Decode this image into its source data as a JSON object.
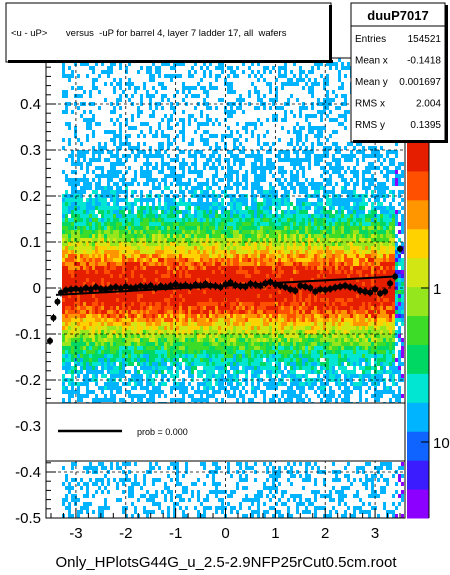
{
  "chart_data": {
    "type": "heatmap",
    "title": "<u - uP>       versus  -uP for barrel 4, layer 7 ladder 17, all  wafers",
    "xlabel": "",
    "ylabel": "",
    "xlim": [
      -3.6,
      3.6
    ],
    "ylim": [
      -0.5,
      0.5
    ],
    "x_ticks": [
      -3,
      -2,
      -1,
      0,
      1,
      2,
      3
    ],
    "y_ticks": [
      -0.5,
      -0.4,
      -0.3,
      -0.2,
      -0.1,
      0,
      0.1,
      0.2,
      0.3,
      0.4
    ],
    "y_tick_labels": [
      "-0.5",
      "-0.4",
      "-0.3",
      "-0.2",
      "-0.1",
      "0",
      "0.1",
      "0.2",
      "0.3",
      "0.4"
    ],
    "color_scale": {
      "type": "log",
      "tick_labels": [
        "1",
        "10"
      ],
      "colors": [
        "#8b00ff",
        "#3a1cff",
        "#0f64ff",
        "#00b4ff",
        "#00e6d2",
        "#00d864",
        "#3cdc28",
        "#96e61e",
        "#d2e614",
        "#ffd200",
        "#ff9600",
        "#ff5000",
        "#e61e00"
      ]
    },
    "profile_series": {
      "name": "mean <u - uP> per -uP bin",
      "x": [
        -3.52,
        -3.45,
        -3.37,
        -3.3,
        -3.2,
        -3.1,
        -3.0,
        -2.9,
        -2.8,
        -2.7,
        -2.6,
        -2.5,
        -2.4,
        -2.3,
        -2.2,
        -2.1,
        -2.0,
        -1.9,
        -1.8,
        -1.7,
        -1.6,
        -1.5,
        -1.4,
        -1.3,
        -1.2,
        -1.1,
        -1.0,
        -0.9,
        -0.8,
        -0.7,
        -0.6,
        -0.5,
        -0.4,
        -0.3,
        -0.2,
        -0.1,
        0.0,
        0.1,
        0.2,
        0.3,
        0.4,
        0.5,
        0.6,
        0.7,
        0.8,
        0.9,
        1.0,
        1.1,
        1.2,
        1.3,
        1.4,
        1.5,
        1.6,
        1.7,
        1.8,
        1.9,
        2.0,
        2.1,
        2.2,
        2.3,
        2.4,
        2.5,
        2.6,
        2.7,
        2.8,
        2.9,
        3.0,
        3.1,
        3.2,
        3.3,
        3.4,
        3.5
      ],
      "y": [
        -0.115,
        -0.065,
        -0.03,
        -0.01,
        -0.005,
        -0.003,
        -0.002,
        -0.004,
        0.0,
        -0.003,
        0.002,
        -0.002,
        -0.003,
        0.0,
        0.002,
        -0.001,
        0.003,
        0.0,
        0.001,
        0.004,
        0.002,
        0.005,
        0.0,
        0.004,
        0.002,
        0.005,
        0.008,
        0.004,
        0.006,
        0.003,
        0.007,
        0.005,
        0.009,
        0.005,
        0.004,
        0.002,
        0.008,
        0.012,
        0.006,
        0.004,
        0.003,
        0.009,
        0.007,
        0.005,
        0.01,
        0.013,
        0.008,
        0.005,
        0.002,
        -0.003,
        -0.006,
        0.005,
        0.003,
        0.0,
        -0.008,
        -0.003,
        -0.004,
        -0.002,
        0.001,
        0.003,
        0.005,
        0.002,
        0.0,
        -0.006,
        -0.008,
        -0.01,
        -0.003,
        -0.012,
        -0.008,
        0.01,
        0.025,
        0.085
      ]
    },
    "fit_line": {
      "x": [
        -3.4,
        3.4
      ],
      "y": [
        -0.015,
        0.025
      ]
    }
  },
  "stats": {
    "name": "duuP7017",
    "rows": [
      {
        "label": "Entries",
        "value": "154521"
      },
      {
        "label": "Mean x",
        "value": "-0.1418"
      },
      {
        "label": "Mean y",
        "value": "0.001697"
      },
      {
        "label": "RMS x",
        "value": "2.004"
      },
      {
        "label": "RMS y",
        "value": "0.1395"
      }
    ]
  },
  "fit_legend": {
    "label": "prob = 0.000"
  },
  "footer": "Only_HPlotsG44G_u_2.5-2.9NFP25rCut0.5cm.root"
}
